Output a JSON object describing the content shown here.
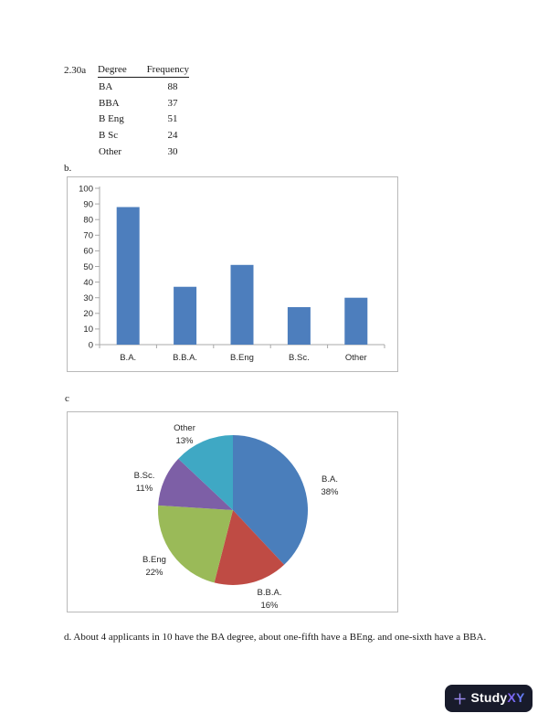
{
  "document": {
    "problem_number": "2.30a",
    "section_b_label": "b.",
    "section_c_label": "c",
    "paragraph_d": "d. About 4 applicants in 10 have the BA degree, about one-fifth have a BEng. and one-sixth have a BBA."
  },
  "table": {
    "headers": {
      "degree": "Degree",
      "frequency": "Frequency"
    },
    "rows": [
      {
        "degree": "BA",
        "freq": "88"
      },
      {
        "degree": "BBA",
        "freq": "37"
      },
      {
        "degree": "B Eng",
        "freq": "51"
      },
      {
        "degree": "B Sc",
        "freq": "24"
      },
      {
        "degree": "Other",
        "freq": "30"
      }
    ]
  },
  "chart_data": [
    {
      "type": "bar",
      "title": "",
      "categories": [
        "B.A.",
        "B.B.A.",
        "B.Eng",
        "B.Sc.",
        "Other"
      ],
      "values": [
        88,
        37,
        51,
        24,
        30
      ],
      "xlabel": "",
      "ylabel": "",
      "ylim": [
        0,
        100
      ],
      "ytick_step": 10,
      "grid": false,
      "legend": false,
      "bar_color": "#4d7ebd",
      "axis_color": "#a8a8a8",
      "label_color": "#262626"
    },
    {
      "type": "pie",
      "title": "",
      "labels": [
        "B.A.",
        "B.B.A.",
        "B.Eng",
        "B.Sc.",
        "Other"
      ],
      "values": [
        38,
        16,
        22,
        11,
        13
      ],
      "value_suffix": "%",
      "colors": [
        "#4a7ebb",
        "#bf4b44",
        "#9aba58",
        "#7d5fa6",
        "#3fa8c4"
      ],
      "start_angle_deg": 0,
      "direction": "clockwise",
      "legend": false,
      "label_color": "#262626"
    }
  ],
  "logo": {
    "plus_icon": "+",
    "text_primary": "Study",
    "text_accent": "XY",
    "bg_color": "#181b2b",
    "accent_color": "#7c66f2"
  }
}
